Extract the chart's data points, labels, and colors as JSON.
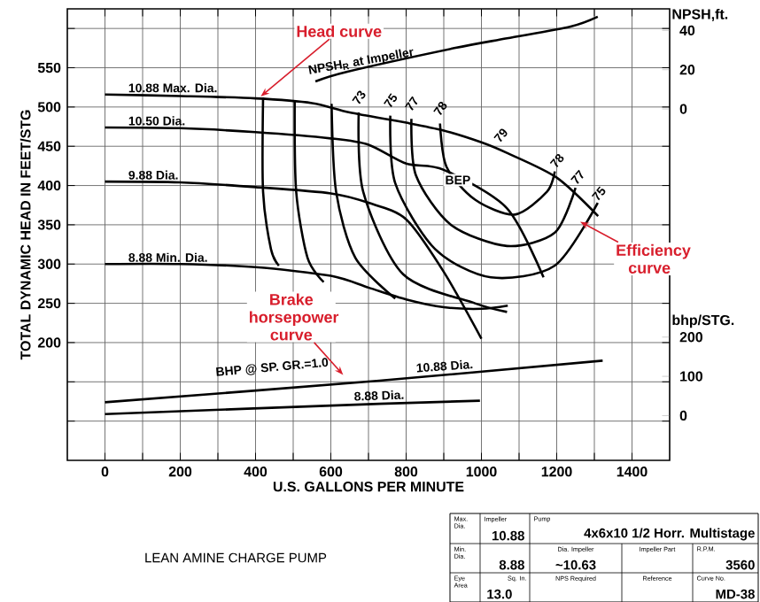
{
  "chart_data": {
    "type": "line",
    "title": "LEAN AMINE CHARGE PUMP",
    "xlabel": "U.S. GALLONS PER MINUTE",
    "ylabel": "TOTAL DYNAMIC HEAD IN FEET/STG",
    "y2label": "bhp/STG.",
    "y3label": "NPSH,ft.",
    "xlim": [
      -100,
      1500
    ],
    "xticks": [
      0,
      {
        "value": 100,
        "label": null
      },
      200,
      {
        "value": 300,
        "label": null
      },
      400,
      {
        "value": 500,
        "label": null
      },
      600,
      {
        "value": 700,
        "label": null
      },
      800,
      {
        "value": 900,
        "label": null
      },
      1000,
      {
        "value": 1100,
        "label": null
      },
      1200,
      {
        "value": 1300,
        "label": null
      },
      1400
    ],
    "ylim": [
      50,
      625
    ],
    "yticks": [
      {
        "value": 100,
        "label": null
      },
      {
        "value": 150,
        "label": null
      },
      200,
      250,
      300,
      350,
      400,
      450,
      500,
      550,
      {
        "value": 600,
        "label": null
      }
    ],
    "y2lim": [
      -114,
      1036
    ],
    "y2ticks": [
      0,
      100,
      200
    ],
    "y3lim": [
      -179,
      51
    ],
    "y3ticks": [
      0,
      20,
      40
    ],
    "grid": true,
    "series": [
      {
        "name": "10.88 Max. Dia.",
        "color": "#000000",
        "x": [
          0,
          200,
          400,
          550,
          650,
          800,
          900,
          1000,
          1070,
          1200,
          1310
        ],
        "values": [
          516,
          514,
          511,
          505,
          493,
          480,
          470,
          455,
          441,
          410,
          361
        ]
      },
      {
        "name": "10.50 Dia.",
        "color": "#000000",
        "x": [
          0,
          200,
          400,
          600,
          700,
          800,
          900,
          1068,
          1165
        ],
        "values": [
          474,
          473,
          468,
          460,
          452,
          428,
          420,
          371,
          283
        ]
      },
      {
        "name": "9.88 Dia.",
        "color": "#000000",
        "x": [
          0,
          200,
          400,
          600,
          700,
          800,
          900,
          1000
        ],
        "values": [
          405,
          404,
          398,
          390,
          378,
          357,
          290,
          205
        ]
      },
      {
        "name": "8.88 Min. Dia.",
        "color": "#000000",
        "x": [
          0,
          200,
          400,
          600,
          700,
          800,
          900,
          1000,
          1070
        ],
        "values": [
          300,
          300,
          296,
          285,
          270,
          255,
          245,
          243,
          247
        ]
      },
      {
        "color": "#000000",
        "x": [
          420,
          420,
          441,
          462
        ],
        "values": [
          512,
          392,
          319,
          298
        ]
      },
      {
        "color": "#000000",
        "x": [
          504,
          508,
          538,
          581
        ],
        "values": [
          508,
          392,
          308,
          277
        ]
      },
      {
        "color": "#000000",
        "x": [
          602,
          614,
          665,
          771
        ],
        "values": [
          504,
          392,
          308,
          256
        ]
      },
      {
        "name": "73",
        "color": "#000000",
        "x": [
          674,
          686,
          792,
          983,
          1068
        ],
        "values": [
          493,
          392,
          287,
          250,
          239
        ]
      },
      {
        "name": "75",
        "color": "#000000",
        "x": [
          758,
          771,
          877,
          1025,
          1195,
          1309
        ],
        "values": [
          489,
          403,
          319,
          283,
          298,
          378
        ]
      },
      {
        "name": "77",
        "color": "#000000",
        "x": [
          814,
          826,
          919,
          1068,
          1195,
          1250
        ],
        "values": [
          485,
          413,
          350,
          323,
          340,
          397
        ]
      },
      {
        "name": "78",
        "color": "#000000",
        "x": [
          890,
          907,
          983,
          1089,
          1174,
          1195
        ],
        "values": [
          479,
          424,
          382,
          363,
          392,
          418
        ]
      },
      {
        "name": "NPSH$_{R}$ at Impeller",
        "color": "#000000",
        "axis": "y3",
        "x": [
          559,
          644,
          928,
          1068,
          1237,
          1309
        ],
        "values": [
          14,
          19,
          31,
          36,
          42,
          47
        ]
      },
      {
        "name": "10.88 Dia.",
        "color": "#000000",
        "axis": "y2",
        "x": [
          0,
          729,
          1322
        ],
        "values": [
          34,
          89,
          140
        ]
      },
      {
        "name": "8.88 Dia.",
        "color": "#000000",
        "axis": "y2",
        "x": [
          0,
          729,
          996
        ],
        "values": [
          4,
          30,
          38
        ]
      }
    ],
    "annotations": [
      {
        "text": "Head curve",
        "x": 410,
        "y": 512
      },
      {
        "text": "Brake horsepower curve",
        "x": 636,
        "y": 157
      },
      {
        "text": "Efficiency curve",
        "x": 1258,
        "y": 355
      },
      {
        "text": "BEP",
        "x": 898,
        "y": 407
      },
      "79",
      {
        "text": "78",
        "x": 1203,
        "y": 422
      },
      {
        "text": "77",
        "x": 1258,
        "y": 401
      },
      {
        "text": "75",
        "x": 1314,
        "y": 380
      },
      "BHP @ SP. GR.=1.0",
      "Max. Dia.",
      "Impeller",
      "10.88",
      "Pump",
      "4x6x10 1/2 Horr. Multistage",
      "Min. Dia.",
      "8.88",
      "Dia. Impeller",
      "~10.63",
      "Impeller Part",
      "R.P.M.",
      "3560",
      "Eye Area",
      "13.0",
      "Sq. In.",
      "NPS Required",
      "Reference",
      "Curve No.",
      "MD-38"
    ]
  }
}
